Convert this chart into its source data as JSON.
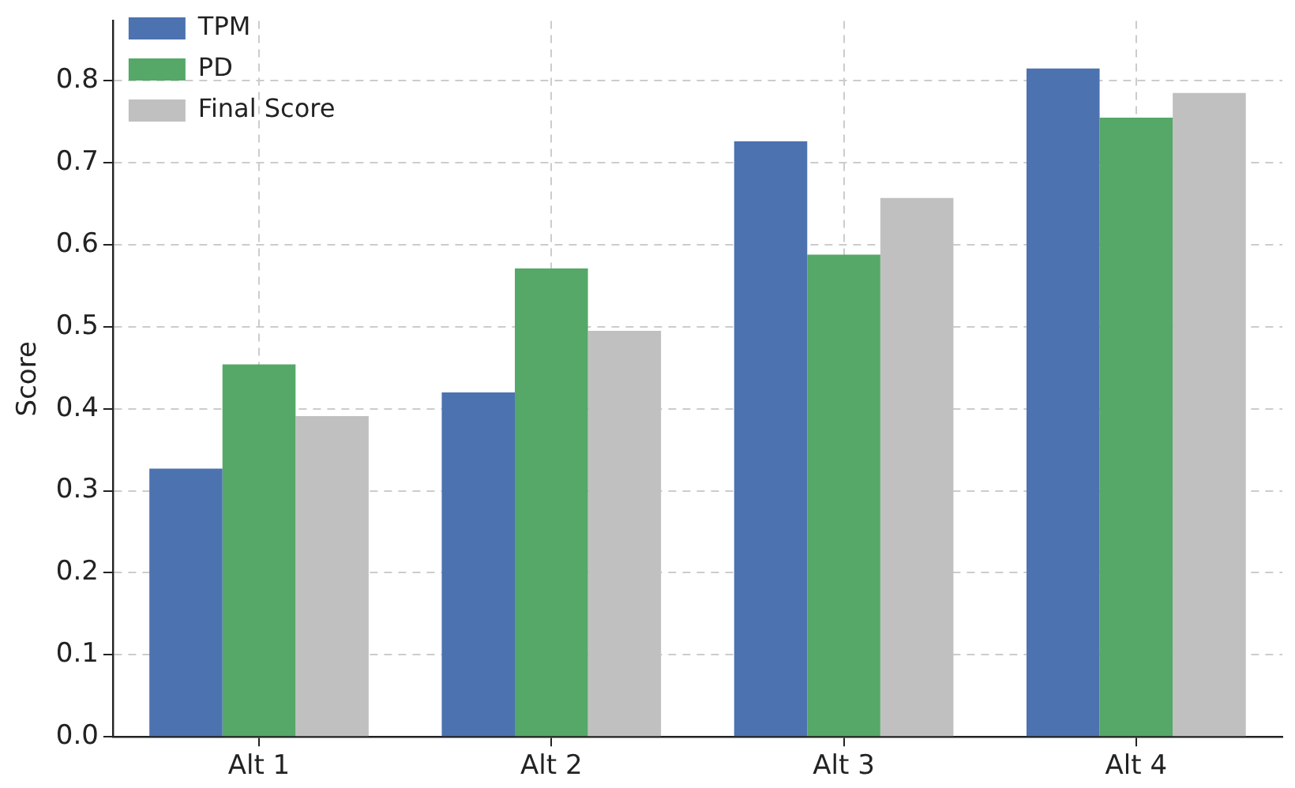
{
  "chart_data": {
    "type": "bar",
    "ylabel": "Score",
    "categories": [
      "Alt 1",
      "Alt 2",
      "Alt 3",
      "Alt 4"
    ],
    "series": [
      {
        "name": "TPM",
        "color": "#4c72b0",
        "values": [
          0.327,
          0.42,
          0.726,
          0.815
        ]
      },
      {
        "name": "PD",
        "color": "#55a868",
        "values": [
          0.454,
          0.571,
          0.588,
          0.755
        ]
      },
      {
        "name": "Final Score",
        "color": "#c0c0c0",
        "values": [
          0.391,
          0.495,
          0.657,
          0.785
        ]
      }
    ],
    "ylim": [
      0,
      0.873
    ],
    "yticks": [
      {
        "value": 0,
        "label": "0.0"
      },
      {
        "value": 0.1,
        "label": "0.1"
      },
      {
        "value": 0.2,
        "label": "0.2"
      },
      {
        "value": 0.3,
        "label": "0.3"
      },
      {
        "value": 0.4,
        "label": "0.4"
      },
      {
        "value": 0.5,
        "label": "0.5"
      },
      {
        "value": 0.6,
        "label": "0.6"
      },
      {
        "value": 0.7,
        "label": "0.7"
      },
      {
        "value": 0.8,
        "label": "0.8"
      }
    ],
    "grid": true,
    "legend": "top left"
  }
}
